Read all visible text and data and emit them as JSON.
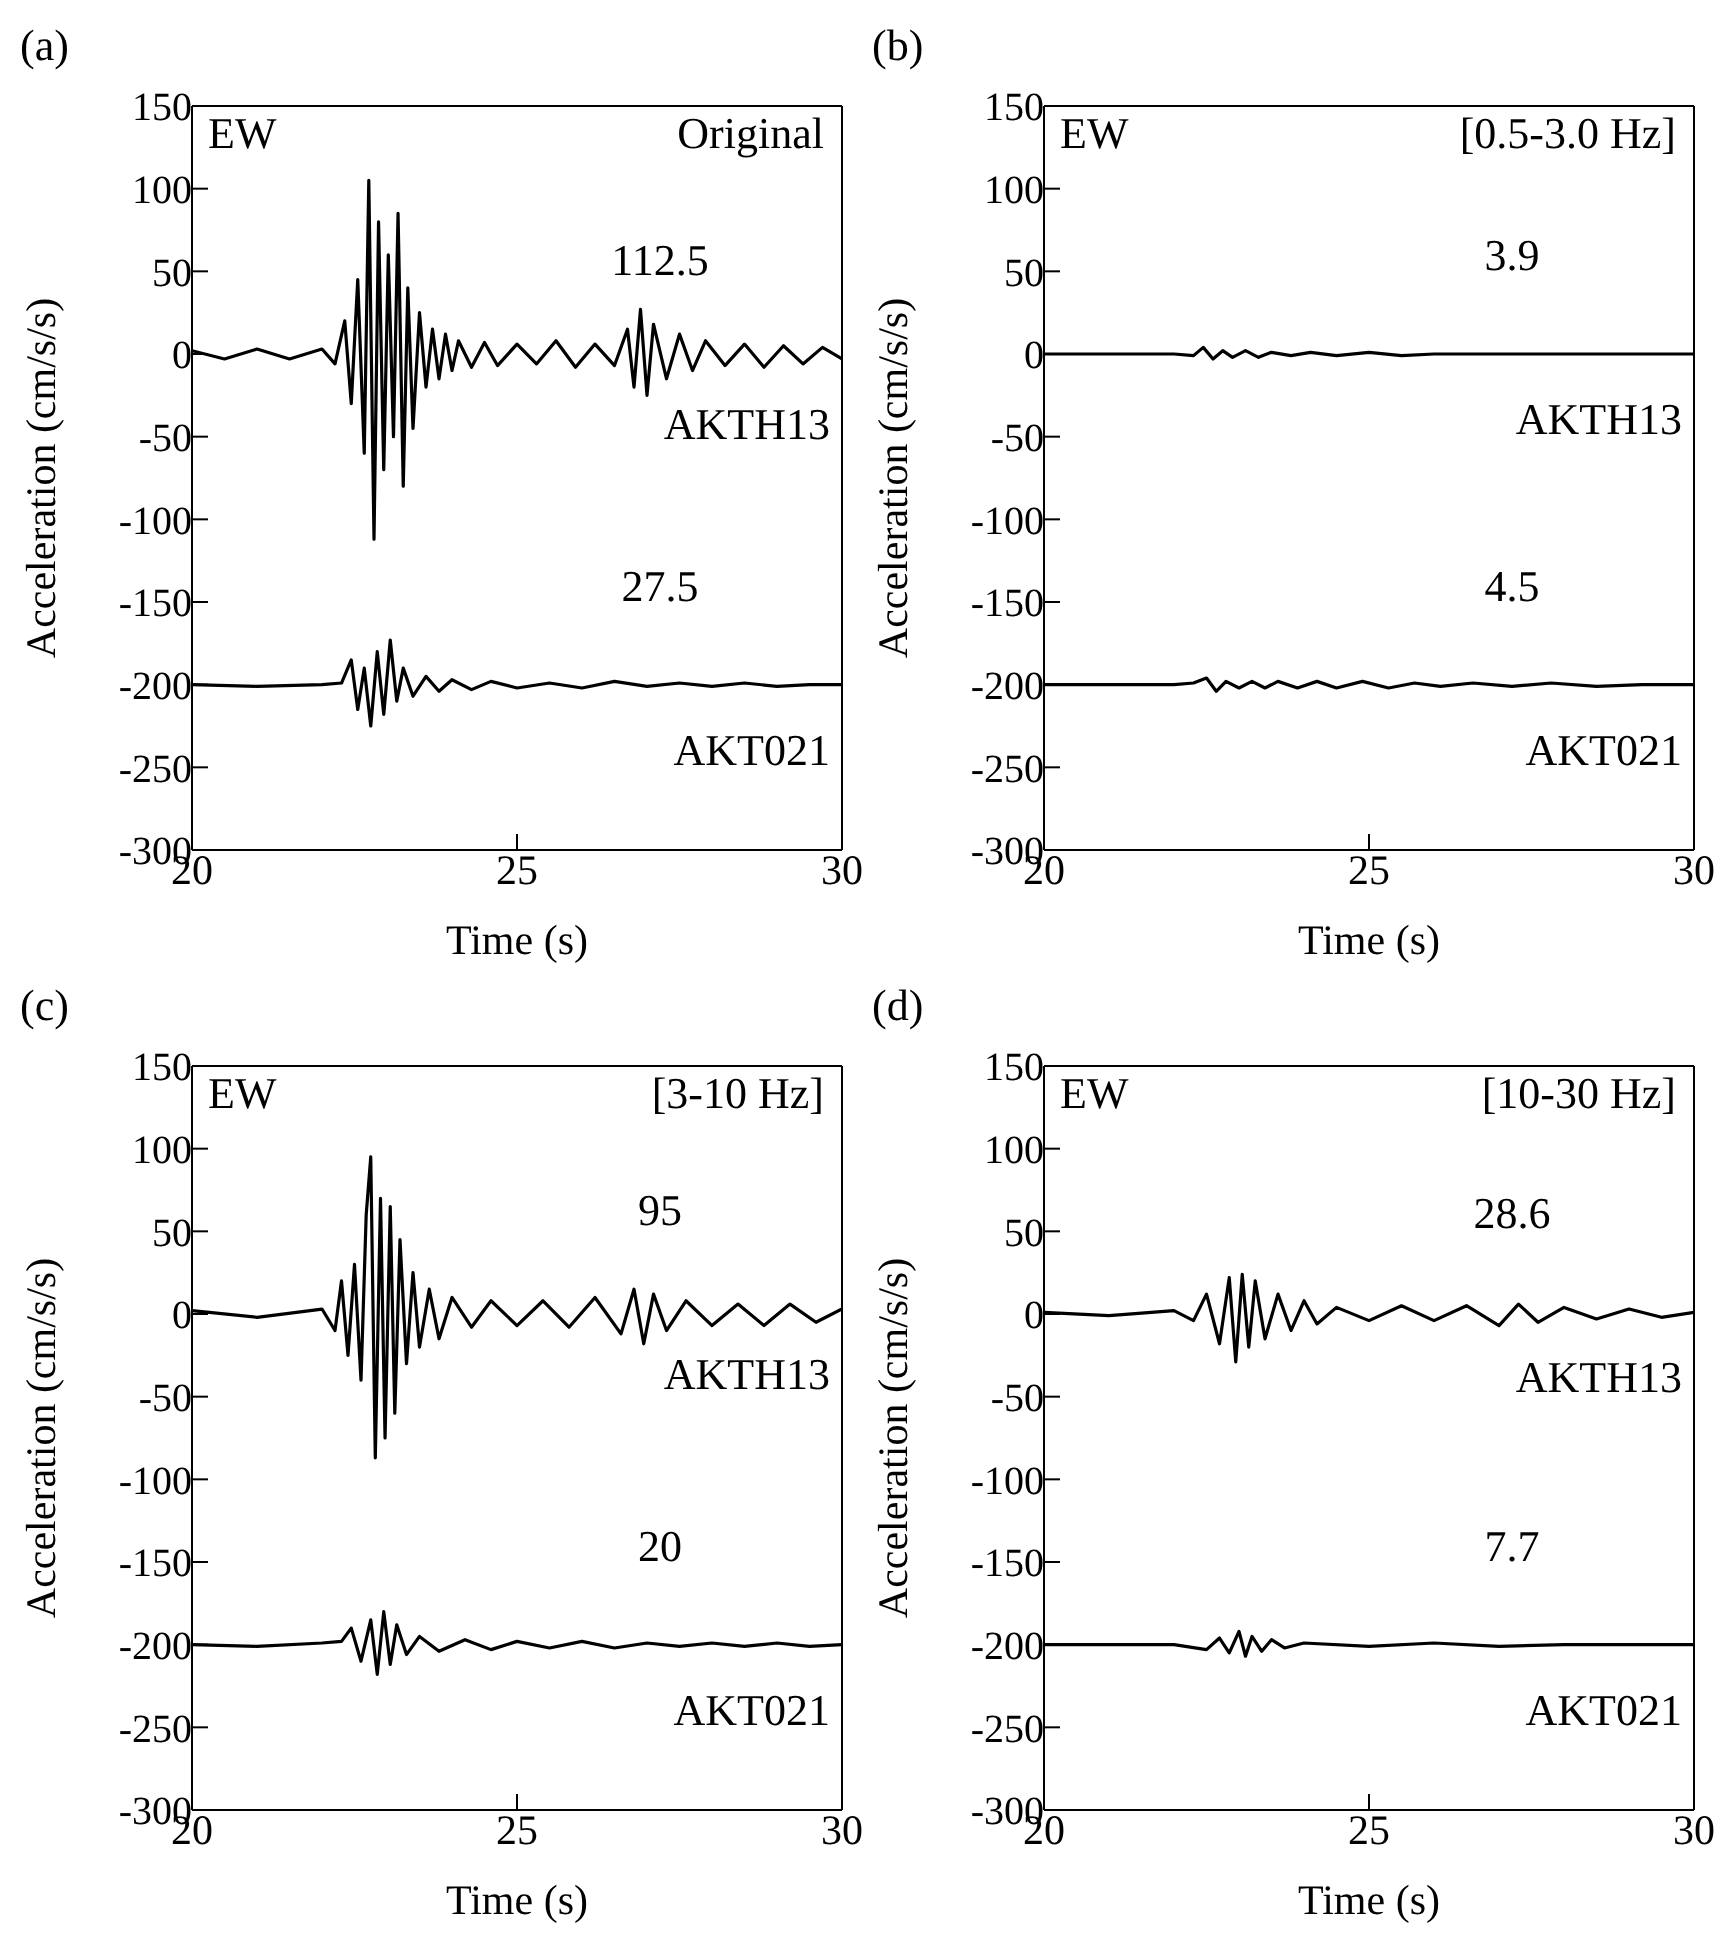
{
  "chart_data": [
    {
      "type": "line",
      "title": "(a)",
      "xlabel": "Time (s)",
      "ylabel": "Acceleration (cm/s/s)",
      "xlim": [
        20,
        30
      ],
      "xticks": [
        20,
        25,
        30
      ],
      "ylim": [
        -300,
        150
      ],
      "yticks": [
        -300,
        -250,
        -200,
        -150,
        -100,
        -50,
        0,
        50,
        100,
        150
      ],
      "annotations": [
        "EW",
        "Original",
        "112.5",
        "27.5"
      ],
      "series": [
        {
          "name": "AKTH13",
          "color": "#000000",
          "x": [
            20,
            20.5,
            21,
            21.5,
            22,
            22.2,
            22.35,
            22.45,
            22.55,
            22.65,
            22.72,
            22.8,
            22.87,
            22.95,
            23.02,
            23.1,
            23.17,
            23.25,
            23.32,
            23.4,
            23.5,
            23.6,
            23.7,
            23.8,
            23.9,
            24.0,
            24.1,
            24.3,
            24.5,
            24.7,
            25,
            25.3,
            25.6,
            25.9,
            26.2,
            26.5,
            26.7,
            26.8,
            26.9,
            27.0,
            27.1,
            27.3,
            27.5,
            27.7,
            27.9,
            28.2,
            28.5,
            28.8,
            29.1,
            29.4,
            29.7,
            30
          ],
          "values": [
            2,
            -3,
            3,
            -3,
            3,
            -6,
            20,
            -30,
            45,
            -60,
            105,
            -112,
            80,
            -70,
            60,
            -50,
            85,
            -80,
            40,
            -45,
            25,
            -20,
            15,
            -15,
            12,
            -10,
            8,
            -8,
            7,
            -7,
            6,
            -6,
            8,
            -8,
            6,
            -7,
            15,
            -20,
            27,
            -25,
            18,
            -15,
            12,
            -10,
            8,
            -7,
            6,
            -8,
            5,
            -6,
            4,
            -3
          ]
        },
        {
          "name": "AKT021",
          "color": "#000000",
          "x": [
            20,
            21,
            22,
            22.3,
            22.45,
            22.55,
            22.65,
            22.75,
            22.85,
            22.95,
            23.05,
            23.15,
            23.25,
            23.4,
            23.6,
            23.8,
            24,
            24.3,
            24.6,
            25,
            25.5,
            26,
            26.5,
            27,
            27.5,
            28,
            28.5,
            29,
            29.5,
            30
          ],
          "values": [
            -200,
            -201,
            -200,
            -199,
            -185,
            -215,
            -190,
            -225,
            -180,
            -218,
            -173,
            -210,
            -190,
            -207,
            -195,
            -204,
            -197,
            -203,
            -198,
            -202,
            -199,
            -202,
            -198,
            -201,
            -199,
            -201,
            -199,
            -201,
            -200,
            -200
          ]
        }
      ]
    },
    {
      "type": "line",
      "title": "(b)",
      "xlabel": "Time (s)",
      "ylabel": "Acceleration (cm/s/s)",
      "xlim": [
        20,
        30
      ],
      "xticks": [
        20,
        25,
        30
      ],
      "ylim": [
        -300,
        150
      ],
      "yticks": [
        -300,
        -250,
        -200,
        -150,
        -100,
        -50,
        0,
        50,
        100,
        150
      ],
      "annotations": [
        "EW",
        "[0.5-3.0 Hz]",
        "3.9",
        "4.5"
      ],
      "series": [
        {
          "name": "AKTH13",
          "color": "#000000",
          "x": [
            20,
            21,
            22,
            22.3,
            22.45,
            22.6,
            22.75,
            22.9,
            23.1,
            23.3,
            23.5,
            23.8,
            24.1,
            24.5,
            25,
            25.5,
            26,
            27,
            28,
            29,
            30
          ],
          "values": [
            0,
            0,
            0,
            -1,
            4,
            -3,
            2,
            -2,
            2,
            -2,
            1,
            -1,
            1,
            -1,
            1,
            -1,
            0,
            0,
            0,
            0,
            0
          ]
        },
        {
          "name": "AKT021",
          "color": "#000000",
          "x": [
            20,
            21,
            22,
            22.3,
            22.5,
            22.65,
            22.8,
            23,
            23.2,
            23.4,
            23.6,
            23.9,
            24.2,
            24.5,
            24.9,
            25.3,
            25.7,
            26.1,
            26.6,
            27.2,
            27.8,
            28.5,
            29.2,
            30
          ],
          "values": [
            -200,
            -200,
            -200,
            -199,
            -196,
            -204,
            -198,
            -202,
            -198,
            -202,
            -198,
            -202,
            -198,
            -202,
            -198,
            -202,
            -199,
            -201,
            -199,
            -201,
            -199,
            -201,
            -200,
            -200
          ]
        }
      ]
    },
    {
      "type": "line",
      "title": "(c)",
      "xlabel": "Time (s)",
      "ylabel": "Acceleration (cm/s/s)",
      "xlim": [
        20,
        30
      ],
      "xticks": [
        20,
        25,
        30
      ],
      "ylim": [
        -300,
        150
      ],
      "yticks": [
        -300,
        -250,
        -200,
        -150,
        -100,
        -50,
        0,
        50,
        100,
        150
      ],
      "annotations": [
        "EW",
        "[3-10 Hz]",
        "95",
        "20"
      ],
      "series": [
        {
          "name": "AKTH13",
          "color": "#000000",
          "x": [
            20,
            21,
            22,
            22.2,
            22.3,
            22.4,
            22.5,
            22.6,
            22.68,
            22.75,
            22.82,
            22.9,
            22.97,
            23.05,
            23.12,
            23.2,
            23.3,
            23.4,
            23.5,
            23.65,
            23.8,
            24,
            24.3,
            24.6,
            25,
            25.4,
            25.8,
            26.2,
            26.6,
            26.8,
            26.95,
            27.1,
            27.3,
            27.6,
            28,
            28.4,
            28.8,
            29.2,
            29.6,
            30
          ],
          "values": [
            2,
            -2,
            3,
            -10,
            20,
            -25,
            30,
            -40,
            60,
            95,
            -87,
            70,
            -75,
            65,
            -60,
            45,
            -30,
            25,
            -20,
            15,
            -15,
            10,
            -8,
            8,
            -7,
            8,
            -8,
            10,
            -12,
            15,
            -18,
            12,
            -10,
            8,
            -7,
            6,
            -7,
            6,
            -5,
            3
          ]
        },
        {
          "name": "AKT021",
          "color": "#000000",
          "x": [
            20,
            21,
            22,
            22.3,
            22.45,
            22.6,
            22.75,
            22.85,
            22.95,
            23.05,
            23.15,
            23.3,
            23.5,
            23.8,
            24.2,
            24.6,
            25,
            25.5,
            26,
            26.5,
            27,
            27.5,
            28,
            28.5,
            29,
            29.5,
            30
          ],
          "values": [
            -200,
            -201,
            -199,
            -198,
            -190,
            -210,
            -185,
            -218,
            -180,
            -212,
            -188,
            -206,
            -195,
            -204,
            -197,
            -203,
            -198,
            -202,
            -198,
            -202,
            -199,
            -201,
            -199,
            -201,
            -199,
            -201,
            -200
          ]
        }
      ]
    },
    {
      "type": "line",
      "title": "(d)",
      "xlabel": "Time (s)",
      "ylabel": "Acceleration (cm/s/s)",
      "xlim": [
        20,
        30
      ],
      "xticks": [
        20,
        25,
        30
      ],
      "ylim": [
        -300,
        150
      ],
      "yticks": [
        -300,
        -250,
        -200,
        -150,
        -100,
        -50,
        0,
        50,
        100,
        150
      ],
      "annotations": [
        "EW",
        "[10-30 Hz]",
        "28.6",
        "7.7"
      ],
      "series": [
        {
          "name": "AKTH13",
          "color": "#000000",
          "x": [
            20,
            21,
            22,
            22.3,
            22.5,
            22.7,
            22.85,
            22.95,
            23.05,
            23.15,
            23.25,
            23.4,
            23.6,
            23.8,
            24.0,
            24.2,
            24.5,
            25,
            25.5,
            26,
            26.5,
            27,
            27.3,
            27.6,
            28,
            28.5,
            29,
            29.5,
            30
          ],
          "values": [
            1,
            -1,
            2,
            -4,
            12,
            -18,
            22,
            -29,
            24,
            -20,
            20,
            -15,
            12,
            -10,
            8,
            -6,
            4,
            -4,
            5,
            -4,
            5,
            -7,
            6,
            -5,
            4,
            -3,
            3,
            -2,
            1
          ]
        },
        {
          "name": "AKT021",
          "color": "#000000",
          "x": [
            20,
            21,
            22,
            22.5,
            22.7,
            22.85,
            23.0,
            23.1,
            23.2,
            23.35,
            23.5,
            23.7,
            24,
            25,
            26,
            27,
            28,
            29,
            30
          ],
          "values": [
            -200,
            -200,
            -200,
            -203,
            -196,
            -205,
            -192,
            -207,
            -195,
            -204,
            -197,
            -202,
            -199,
            -201,
            -199,
            -201,
            -200,
            -200,
            -200
          ]
        }
      ]
    }
  ]
}
